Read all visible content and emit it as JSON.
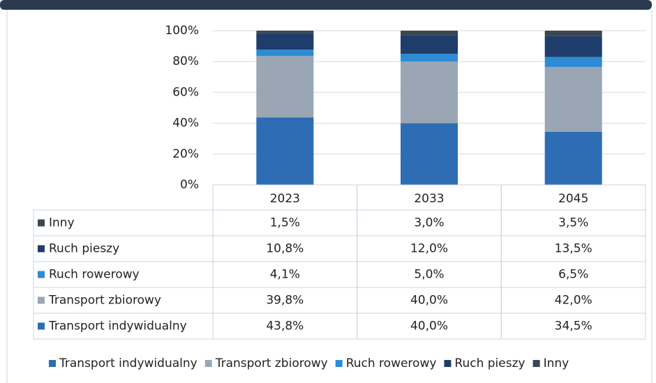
{
  "chart_data": {
    "type": "bar",
    "stacked": true,
    "categories": [
      "2023",
      "2033",
      "2045"
    ],
    "series": [
      {
        "name": "Transport indywidualny",
        "color": "#2e6db4",
        "values": [
          43.8,
          40.0,
          34.5
        ],
        "value_labels": [
          "43,8%",
          "40,0%",
          "34,5%"
        ]
      },
      {
        "name": "Transport zbiorowy",
        "color": "#9aa6b4",
        "values": [
          39.8,
          40.0,
          42.0
        ],
        "value_labels": [
          "39,8%",
          "40,0%",
          "42,0%"
        ]
      },
      {
        "name": "Ruch rowerowy",
        "color": "#2c8bd4",
        "values": [
          4.1,
          5.0,
          6.5
        ],
        "value_labels": [
          "4,1%",
          "5,0%",
          "6,5%"
        ]
      },
      {
        "name": "Ruch pieszy",
        "color": "#1f3d6b",
        "values": [
          10.8,
          12.0,
          13.5
        ],
        "value_labels": [
          "10,8%",
          "12,0%",
          "13,5%"
        ]
      },
      {
        "name": "Inny",
        "color": "#3b4651",
        "values": [
          1.5,
          3.0,
          3.5
        ],
        "value_labels": [
          "1,5%",
          "3,0%",
          "3,5%"
        ]
      }
    ],
    "ylim": [
      0,
      100
    ],
    "yticks": [
      {
        "value": 0,
        "label": "0%"
      },
      {
        "value": 20,
        "label": "20%"
      },
      {
        "value": 40,
        "label": "40%"
      },
      {
        "value": 60,
        "label": "60%"
      },
      {
        "value": 80,
        "label": "80%"
      },
      {
        "value": 100,
        "label": "100%"
      }
    ],
    "grid": true,
    "legend": "bottom"
  }
}
